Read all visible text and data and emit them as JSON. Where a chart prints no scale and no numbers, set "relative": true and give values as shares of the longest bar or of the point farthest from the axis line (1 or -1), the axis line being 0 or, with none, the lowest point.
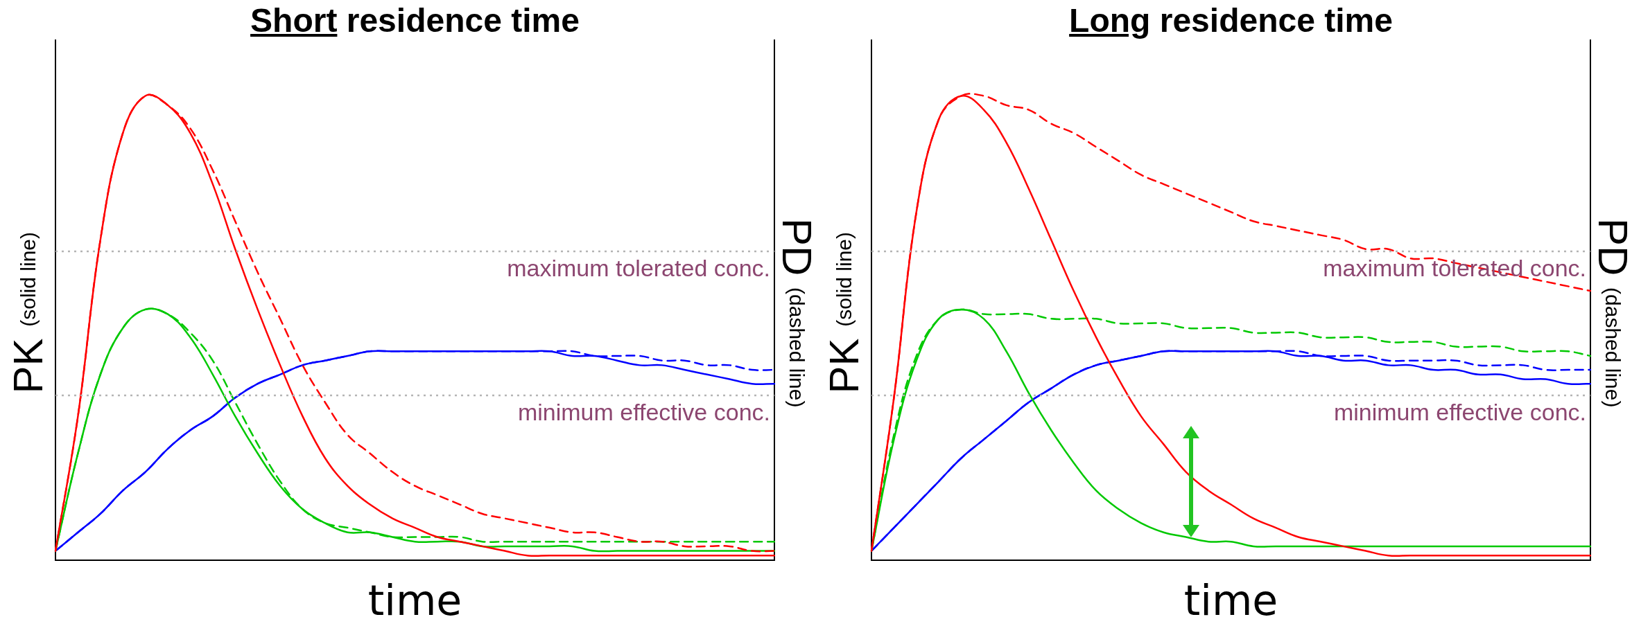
{
  "chart_data": [
    {
      "type": "line",
      "title": "Short residence time",
      "xlabel": "time",
      "ylabel": "PK (solid line)",
      "y2label": "PD (dashed line)",
      "relative": true,
      "grid": false,
      "legend": false,
      "marker": "none",
      "tick_labels": false,
      "categories": [
        null,
        null,
        null,
        null,
        null,
        null,
        null,
        null,
        null,
        null,
        null,
        null,
        null,
        null,
        null,
        null,
        null,
        null,
        null,
        null,
        null,
        null,
        null,
        null,
        null,
        null,
        null,
        null,
        null,
        null,
        null,
        null,
        null
      ],
      "series": [
        {
          "color": "#ff0000",
          "line_style": "solid",
          "values": [
            0.02,
            0.31,
            0.69,
            0.92,
            1,
            0.98,
            0.92,
            0.81,
            0.67,
            0.54,
            0.42,
            0.31,
            0.22,
            0.16,
            0.12,
            0.09,
            0.07,
            0.05,
            0.04,
            0.03,
            0.02,
            0.01,
            0.01,
            0.01,
            0.01,
            0.01,
            0.01,
            0.01,
            0.01,
            0.01,
            0.01,
            0.01,
            0.01
          ]
        },
        {
          "color": "#ff0000",
          "line_style": "dashed",
          "values": [
            0.02,
            0.31,
            0.69,
            0.92,
            1,
            0.98,
            0.93,
            0.84,
            0.73,
            0.62,
            0.52,
            0.42,
            0.34,
            0.27,
            0.23,
            0.19,
            0.16,
            0.14,
            0.12,
            0.1,
            0.09,
            0.08,
            0.07,
            0.06,
            0.06,
            0.05,
            0.04,
            0.04,
            0.03,
            0.03,
            0.03,
            0.02,
            0.02
          ]
        },
        {
          "color": "#00c800",
          "line_style": "solid",
          "values": [
            0.02,
            0.23,
            0.4,
            0.5,
            0.54,
            0.53,
            0.48,
            0.4,
            0.31,
            0.23,
            0.16,
            0.11,
            0.08,
            0.06,
            0.06,
            0.05,
            0.04,
            0.04,
            0.04,
            0.03,
            0.03,
            0.03,
            0.03,
            0.03,
            0.02,
            0.02,
            0.02,
            0.02,
            0.02,
            0.02,
            0.02,
            0.02,
            0.02
          ]
        },
        {
          "color": "#00c800",
          "line_style": "dashed",
          "values": [
            0.02,
            0.23,
            0.4,
            0.5,
            0.54,
            0.53,
            0.49,
            0.43,
            0.34,
            0.25,
            0.17,
            0.11,
            0.08,
            0.07,
            0.06,
            0.05,
            0.05,
            0.05,
            0.05,
            0.04,
            0.04,
            0.04,
            0.04,
            0.04,
            0.04,
            0.04,
            0.04,
            0.04,
            0.04,
            0.04,
            0.04,
            0.04,
            0.04
          ]
        },
        {
          "color": "#0000ff",
          "line_style": "solid",
          "values": [
            0.02,
            0.06,
            0.1,
            0.15,
            0.19,
            0.24,
            0.28,
            0.31,
            0.35,
            0.38,
            0.4,
            0.42,
            0.43,
            0.44,
            0.45,
            0.45,
            0.45,
            0.45,
            0.45,
            0.45,
            0.45,
            0.45,
            0.45,
            0.44,
            0.44,
            0.43,
            0.42,
            0.42,
            0.41,
            0.4,
            0.39,
            0.38,
            0.38
          ]
        },
        {
          "color": "#0000ff",
          "line_style": "dashed",
          "values": [
            0.02,
            0.06,
            0.1,
            0.15,
            0.19,
            0.24,
            0.28,
            0.31,
            0.35,
            0.38,
            0.4,
            0.42,
            0.43,
            0.44,
            0.45,
            0.45,
            0.45,
            0.45,
            0.45,
            0.45,
            0.45,
            0.45,
            0.45,
            0.45,
            0.44,
            0.44,
            0.44,
            0.43,
            0.43,
            0.42,
            0.42,
            0.41,
            0.41
          ]
        }
      ],
      "ref_lines": [
        {
          "axis": "y",
          "value": 0.665,
          "label": "maximum tolerated conc.",
          "color": "#b4b4b4",
          "line_style": "dotted"
        },
        {
          "axis": "y",
          "value": 0.355,
          "label": "minimum effective conc.",
          "color": "#b4b4b4",
          "line_style": "dotted"
        }
      ]
    },
    {
      "type": "line",
      "title": "Long residence time",
      "xlabel": "time",
      "ylabel": "PK (solid line)",
      "y2label": "PD (dashed line)",
      "relative": true,
      "grid": false,
      "legend": false,
      "marker": "none",
      "tick_labels": false,
      "categories": [
        null,
        null,
        null,
        null,
        null,
        null,
        null,
        null,
        null,
        null,
        null,
        null,
        null,
        null,
        null,
        null,
        null,
        null,
        null,
        null,
        null,
        null,
        null,
        null,
        null,
        null,
        null,
        null,
        null,
        null,
        null,
        null,
        null
      ],
      "series": [
        {
          "color": "#ff0000",
          "line_style": "solid",
          "values": [
            0.02,
            0.35,
            0.75,
            0.95,
            1,
            0.97,
            0.9,
            0.8,
            0.69,
            0.58,
            0.48,
            0.39,
            0.31,
            0.25,
            0.19,
            0.15,
            0.12,
            0.09,
            0.07,
            0.05,
            0.04,
            0.03,
            0.02,
            0.01,
            0.01,
            0.01,
            0.01,
            0.01,
            0.01,
            0.01,
            0.01,
            0.01,
            0.01
          ]
        },
        {
          "color": "#ff0000",
          "line_style": "dashed",
          "values": [
            0.02,
            0.35,
            0.75,
            0.95,
            1,
            1,
            0.98,
            0.97,
            0.94,
            0.92,
            0.89,
            0.86,
            0.83,
            0.81,
            0.79,
            0.77,
            0.75,
            0.73,
            0.72,
            0.71,
            0.7,
            0.69,
            0.67,
            0.67,
            0.65,
            0.65,
            0.64,
            0.63,
            0.62,
            0.61,
            0.6,
            0.59,
            0.58
          ]
        },
        {
          "color": "#00c800",
          "line_style": "solid",
          "values": [
            0.02,
            0.26,
            0.43,
            0.52,
            0.54,
            0.52,
            0.45,
            0.36,
            0.28,
            0.21,
            0.15,
            0.11,
            0.08,
            0.06,
            0.05,
            0.04,
            0.04,
            0.03,
            0.03,
            0.03,
            0.03,
            0.03,
            0.03,
            0.03,
            0.03,
            0.03,
            0.03,
            0.03,
            0.03,
            0.03,
            0.03,
            0.03,
            0.03
          ]
        },
        {
          "color": "#00c800",
          "line_style": "dashed",
          "values": [
            0.02,
            0.27,
            0.44,
            0.52,
            0.54,
            0.53,
            0.53,
            0.53,
            0.52,
            0.52,
            0.52,
            0.51,
            0.51,
            0.51,
            0.5,
            0.5,
            0.5,
            0.49,
            0.49,
            0.49,
            0.48,
            0.48,
            0.48,
            0.47,
            0.47,
            0.47,
            0.46,
            0.46,
            0.46,
            0.45,
            0.45,
            0.45,
            0.44
          ]
        },
        {
          "color": "#0000ff",
          "line_style": "solid",
          "values": [
            0.02,
            0.07,
            0.12,
            0.17,
            0.22,
            0.26,
            0.3,
            0.34,
            0.37,
            0.4,
            0.42,
            0.43,
            0.44,
            0.45,
            0.45,
            0.45,
            0.45,
            0.45,
            0.45,
            0.44,
            0.44,
            0.43,
            0.43,
            0.42,
            0.42,
            0.41,
            0.41,
            0.4,
            0.4,
            0.39,
            0.39,
            0.38,
            0.38
          ]
        },
        {
          "color": "#0000ff",
          "line_style": "dashed",
          "values": [
            0.02,
            0.07,
            0.12,
            0.17,
            0.22,
            0.26,
            0.3,
            0.34,
            0.37,
            0.4,
            0.42,
            0.43,
            0.44,
            0.45,
            0.45,
            0.45,
            0.45,
            0.45,
            0.45,
            0.45,
            0.44,
            0.44,
            0.44,
            0.43,
            0.43,
            0.43,
            0.43,
            0.42,
            0.42,
            0.42,
            0.41,
            0.41,
            0.41
          ]
        }
      ],
      "ref_lines": [
        {
          "axis": "y",
          "value": 0.665,
          "label": "maximum tolerated conc.",
          "color": "#b4b4b4",
          "line_style": "dotted"
        },
        {
          "axis": "y",
          "value": 0.355,
          "label": "minimum effective conc.",
          "color": "#b4b4b4",
          "line_style": "dotted"
        }
      ]
    }
  ]
}
